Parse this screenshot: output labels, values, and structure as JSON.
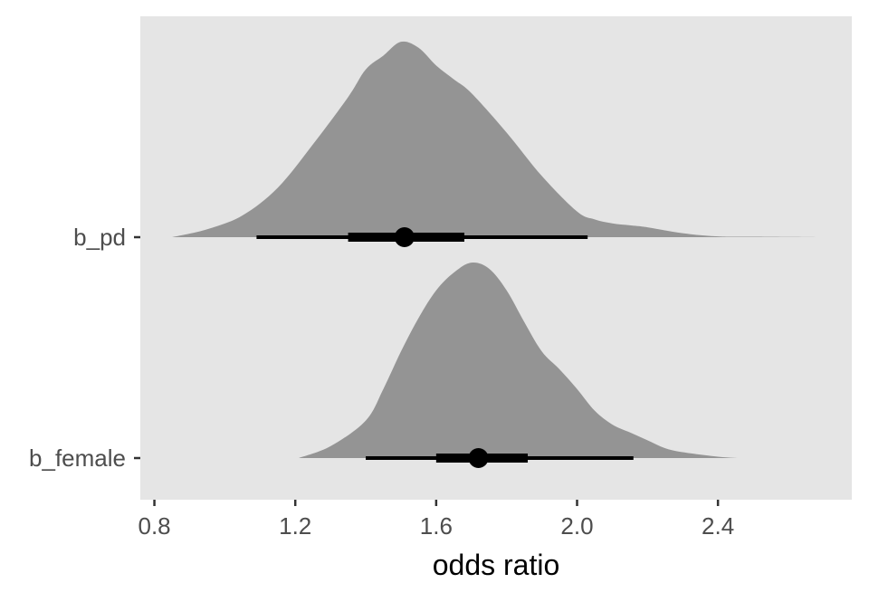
{
  "chart_data": {
    "type": "halfeye",
    "title": "",
    "xlabel": "odds ratio",
    "ylabel": "",
    "xlim": [
      0.76,
      2.78
    ],
    "xticks": [
      0.8,
      1.2,
      1.6,
      2.0,
      2.4
    ],
    "xtick_labels": [
      "0.8",
      "1.2",
      "1.6",
      "2.0",
      "2.4"
    ],
    "grid": false,
    "legend": "none",
    "colors": {
      "panel_background": "#e5e5e5",
      "density_fill": "#949494",
      "interval": "#000000",
      "point": "#000000",
      "axis_text": "#4d4d4d",
      "axis_title": "#000000",
      "ticks": "#333333"
    },
    "series": [
      {
        "category": "b_pd",
        "point": 1.51,
        "interval_66": [
          1.35,
          1.68
        ],
        "interval_95": [
          1.09,
          2.03
        ],
        "density_range": [
          0.85,
          2.7
        ],
        "density": [
          [
            0.85,
            0.0
          ],
          [
            0.95,
            0.04
          ],
          [
            1.05,
            0.11
          ],
          [
            1.15,
            0.25
          ],
          [
            1.25,
            0.47
          ],
          [
            1.35,
            0.71
          ],
          [
            1.4,
            0.85
          ],
          [
            1.45,
            0.92
          ],
          [
            1.5,
            0.99
          ],
          [
            1.55,
            0.96
          ],
          [
            1.6,
            0.87
          ],
          [
            1.65,
            0.8
          ],
          [
            1.7,
            0.73
          ],
          [
            1.8,
            0.53
          ],
          [
            1.9,
            0.31
          ],
          [
            2.0,
            0.13
          ],
          [
            2.05,
            0.09
          ],
          [
            2.1,
            0.07
          ],
          [
            2.15,
            0.06
          ],
          [
            2.2,
            0.05
          ],
          [
            2.3,
            0.02
          ],
          [
            2.4,
            0.004
          ],
          [
            2.5,
            0.002
          ],
          [
            2.7,
            0.0
          ]
        ]
      },
      {
        "category": "b_female",
        "point": 1.72,
        "interval_66": [
          1.6,
          1.86
        ],
        "interval_95": [
          1.4,
          2.16
        ],
        "density_range": [
          1.21,
          2.46
        ],
        "density": [
          [
            1.21,
            0.0
          ],
          [
            1.3,
            0.06
          ],
          [
            1.4,
            0.19
          ],
          [
            1.45,
            0.35
          ],
          [
            1.5,
            0.54
          ],
          [
            1.55,
            0.71
          ],
          [
            1.6,
            0.85
          ],
          [
            1.65,
            0.94
          ],
          [
            1.7,
            0.99
          ],
          [
            1.75,
            0.96
          ],
          [
            1.8,
            0.85
          ],
          [
            1.85,
            0.69
          ],
          [
            1.9,
            0.54
          ],
          [
            1.95,
            0.45
          ],
          [
            2.0,
            0.35
          ],
          [
            2.05,
            0.24
          ],
          [
            2.1,
            0.17
          ],
          [
            2.15,
            0.13
          ],
          [
            2.2,
            0.09
          ],
          [
            2.25,
            0.05
          ],
          [
            2.3,
            0.03
          ],
          [
            2.4,
            0.007
          ],
          [
            2.46,
            0.0
          ]
        ]
      }
    ]
  }
}
